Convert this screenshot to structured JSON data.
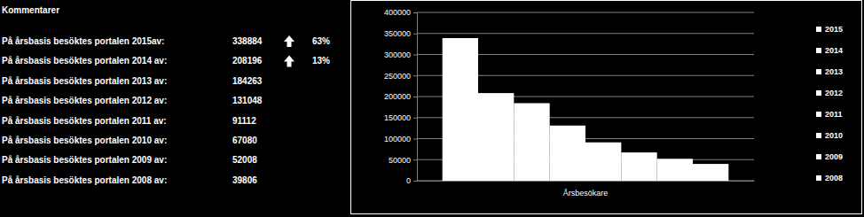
{
  "comments": {
    "title": "Kommentarer",
    "rows": [
      {
        "label": "På årsbasis besöktes portalen 2015av:",
        "value": 338884,
        "change": "63%"
      },
      {
        "label": "På årsbasis besöktes portalen 2014 av:",
        "value": 208196,
        "change": "13%"
      },
      {
        "label": "På årsbasis besöktes portalen 2013 av:",
        "value": 184263
      },
      {
        "label": "På årsbasis besöktes portalen 2012 av:",
        "value": 131048
      },
      {
        "label": "På årsbasis besöktes portalen 2011 av:",
        "value": 91112
      },
      {
        "label": "På årsbasis besöktes portalen 2010 av:",
        "value": 67080
      },
      {
        "label": "På årsbasis besöktes portalen 2009 av:",
        "value": 52008
      },
      {
        "label": "På årsbasis besöktes portalen 2008 av:",
        "value": 39806
      }
    ]
  },
  "chart_data": {
    "type": "bar",
    "categories": [
      "Årsbesökare"
    ],
    "series": [
      {
        "name": "2015",
        "color": "#ffffff",
        "values": [
          338884
        ]
      },
      {
        "name": "2014",
        "color": "#ffffff",
        "values": [
          208196
        ]
      },
      {
        "name": "2013",
        "color": "#ffffff",
        "values": [
          184263
        ]
      },
      {
        "name": "2012",
        "color": "#ffffff",
        "values": [
          131048
        ]
      },
      {
        "name": "2011",
        "color": "#ffffff",
        "values": [
          91112
        ]
      },
      {
        "name": "2010",
        "color": "#ffffff",
        "values": [
          67080
        ]
      },
      {
        "name": "2009",
        "color": "#ffffff",
        "values": [
          52008
        ]
      },
      {
        "name": "2008",
        "color": "#ffffff",
        "values": [
          39806
        ]
      }
    ],
    "ylim": [
      0,
      400000
    ],
    "yticks": [
      0,
      50000,
      100000,
      150000,
      200000,
      250000,
      300000,
      350000,
      400000
    ],
    "grid": true,
    "legend": "right"
  }
}
